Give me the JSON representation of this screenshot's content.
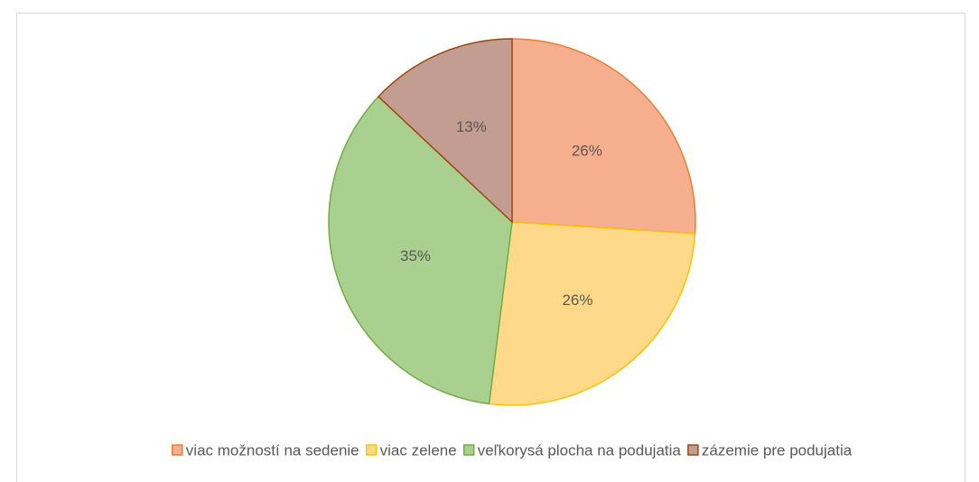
{
  "chart_data": {
    "type": "pie",
    "categories": [
      "viac možností na sedenie",
      "viac zelene",
      "veľkorysá plocha na podujatia",
      "zázemie pre podujatia"
    ],
    "values": [
      26,
      26,
      35,
      13
    ],
    "value_labels": [
      "26%",
      "26%",
      "35%",
      "13%"
    ],
    "colors": [
      "#f5ae8e",
      "#fed98a",
      "#a9d08e",
      "#c39d91"
    ],
    "edge_colors": [
      "#ed7d31",
      "#ffc000",
      "#70ad47",
      "#9e480e"
    ],
    "legend": "bottom"
  }
}
